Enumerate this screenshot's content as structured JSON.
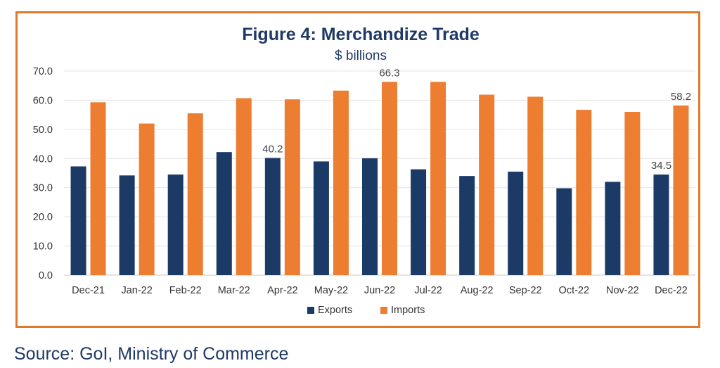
{
  "chart_data": {
    "type": "bar",
    "title": "Figure 4: Merchandize Trade",
    "subtitle": "$ billions",
    "categories": [
      "Dec-21",
      "Jan-22",
      "Feb-22",
      "Mar-22",
      "Apr-22",
      "May-22",
      "Jun-22",
      "Jul-22",
      "Aug-22",
      "Sep-22",
      "Oct-22",
      "Nov-22",
      "Dec-22"
    ],
    "series": [
      {
        "name": "Exports",
        "color": "#1b3a66",
        "values": [
          37.3,
          34.2,
          34.5,
          42.2,
          40.2,
          39.0,
          40.1,
          36.3,
          34.0,
          35.5,
          29.8,
          32.0,
          34.5
        ]
      },
      {
        "name": "Imports",
        "color": "#ed7d31",
        "values": [
          59.3,
          52.0,
          55.5,
          60.7,
          60.3,
          63.3,
          66.3,
          66.3,
          61.9,
          61.2,
          56.7,
          56.0,
          58.2
        ]
      }
    ],
    "ylim": [
      0,
      70
    ],
    "yticks": [
      "0.0",
      "10.0",
      "20.0",
      "30.0",
      "40.0",
      "50.0",
      "60.0",
      "70.0"
    ],
    "grid": true,
    "legend_position": "bottom",
    "data_labels": [
      {
        "series": 0,
        "index": 4,
        "text": "40.2"
      },
      {
        "series": 1,
        "index": 6,
        "text": "66.3"
      },
      {
        "series": 0,
        "index": 12,
        "text": "34.5"
      },
      {
        "series": 1,
        "index": 12,
        "text": "58.2"
      }
    ]
  },
  "source": "Source: GoI, Ministry of Commerce"
}
